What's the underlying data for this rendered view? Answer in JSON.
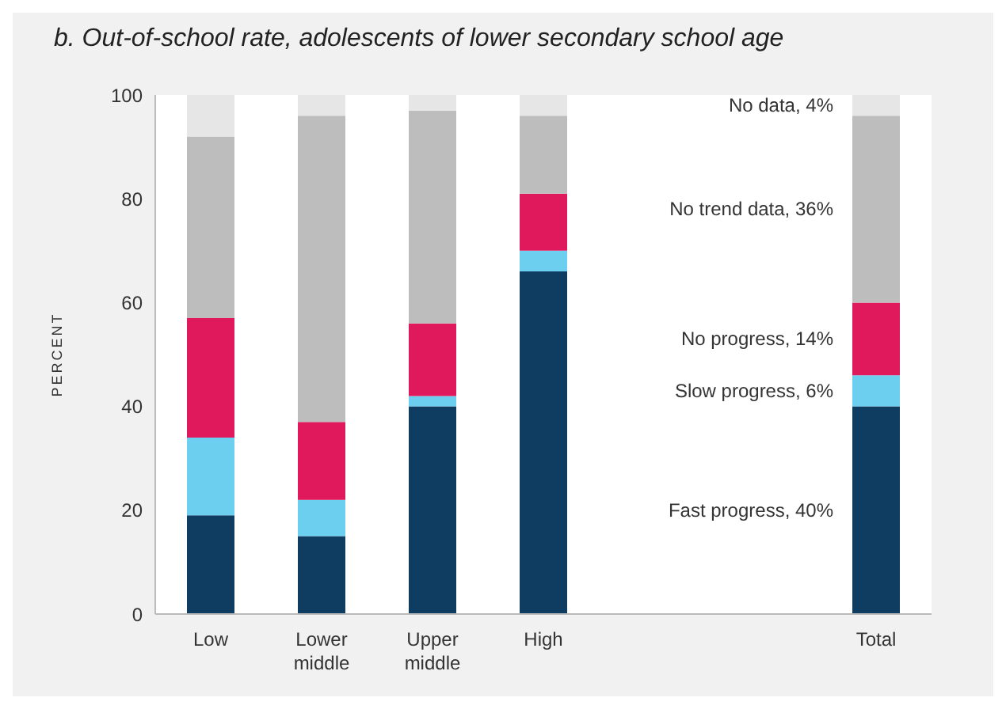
{
  "chart_data": {
    "type": "bar",
    "title": "b. Out-of-school rate, adolescents of lower secondary school age",
    "ylabel": "PERCENT",
    "categories": [
      "Low",
      "Lower middle",
      "Upper middle",
      "High",
      null,
      null,
      "Total"
    ],
    "stacked": true,
    "legend": false,
    "ylim": [
      0,
      100
    ],
    "yticks": [
      0,
      20,
      40,
      60,
      80,
      100
    ],
    "series": [
      {
        "name": "Fast progress, 40%",
        "color": "#0f3d62",
        "values": [
          19,
          15,
          40,
          66,
          null,
          null,
          40
        ]
      },
      {
        "name": "Slow progress, 6%",
        "color": "#6dcff0",
        "values": [
          15,
          7,
          2,
          4,
          null,
          null,
          6
        ]
      },
      {
        "name": "No progress, 14%",
        "color": "#e0185c",
        "values": [
          23,
          15,
          14,
          11,
          null,
          null,
          14
        ]
      },
      {
        "name": "No trend data, 36%",
        "color": "#bdbdbd",
        "values": [
          35,
          59,
          41,
          15,
          null,
          null,
          36
        ]
      },
      {
        "name": "No data, 4%",
        "color": "#e6e6e6",
        "values": [
          8,
          4,
          3,
          4,
          null,
          null,
          4
        ]
      }
    ]
  }
}
